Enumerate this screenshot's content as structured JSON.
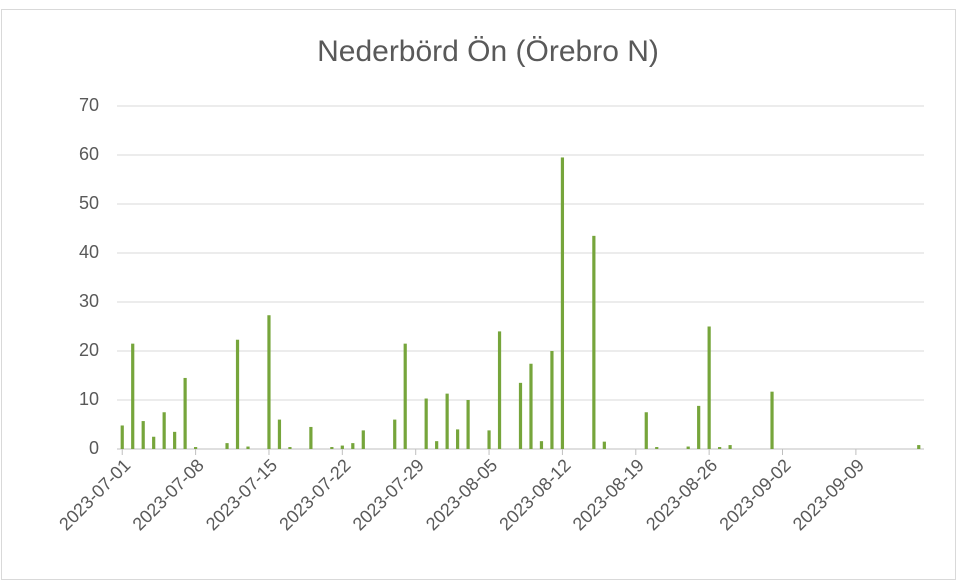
{
  "chart_data": {
    "type": "bar",
    "title": "Nederbörd Ön (Örebro N)",
    "categories": [
      "2023-07-01",
      null,
      null,
      null,
      null,
      null,
      null,
      "2023-07-08",
      null,
      null,
      null,
      null,
      null,
      null,
      "2023-07-15",
      null,
      null,
      null,
      null,
      null,
      null,
      "2023-07-22",
      null,
      null,
      null,
      null,
      null,
      null,
      "2023-07-29",
      null,
      null,
      null,
      null,
      null,
      null,
      "2023-08-05",
      null,
      null,
      null,
      null,
      null,
      null,
      "2023-08-12",
      null,
      null,
      null,
      null,
      null,
      null,
      "2023-08-19",
      null,
      null,
      null,
      null,
      null,
      null,
      "2023-08-26",
      null,
      null,
      null,
      null,
      null,
      null,
      "2023-09-02",
      null,
      null,
      null,
      null,
      null,
      null,
      "2023-09-09",
      null,
      null,
      null,
      null,
      null,
      null
    ],
    "values": [
      4.8,
      21.5,
      5.7,
      2.5,
      7.5,
      3.5,
      14.5,
      0.4,
      0,
      0,
      1.2,
      22.3,
      0.5,
      0,
      27.3,
      6,
      0.4,
      0,
      4.5,
      0,
      0.4,
      0.7,
      1.2,
      3.8,
      0,
      0,
      6,
      21.5,
      0,
      10.3,
      1.6,
      11.3,
      4,
      10,
      0,
      3.8,
      24,
      0,
      13.5,
      17.4,
      1.6,
      20,
      59.5,
      0,
      0,
      43.5,
      1.5,
      0,
      0,
      0,
      7.5,
      0.4,
      0,
      0,
      0.5,
      8.8,
      25,
      0.4,
      0.8,
      0,
      0,
      0,
      11.7,
      0,
      0,
      0,
      0,
      0,
      0,
      0,
      0,
      0,
      0,
      0,
      0,
      0,
      0.8
    ],
    "color": "#76a53b",
    "ylim": [
      0,
      70
    ],
    "yticks": [
      0,
      10,
      20,
      30,
      40,
      50,
      60,
      70
    ],
    "grid": true
  }
}
